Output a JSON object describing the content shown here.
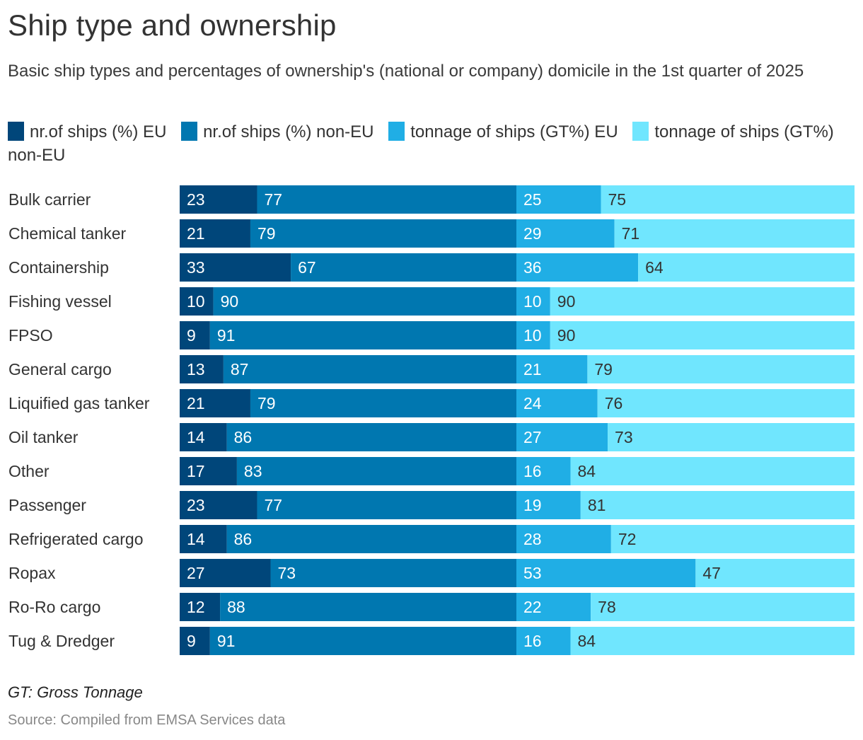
{
  "colors": {
    "ships_eu": "#00467a",
    "ships_non_eu": "#0077b0",
    "tonnage_eu": "#20aee5",
    "tonnage_non_eu": "#70e6fe",
    "label_light": "#ffffff",
    "label_dark": "#333333",
    "category_text": "#333333"
  },
  "footer": {
    "note": "GT: Gross Tonnage",
    "source": "Source: Compiled from EMSA Services data"
  },
  "chart_data": {
    "type": "bar",
    "orientation": "horizontal",
    "stacking": "percent, two independent 100% blocks per row (ships | tonnage)",
    "title": "Ship type and ownership",
    "subtitle": "Basic ship types and percentages of ownership's (national or company) domicile in the 1st quarter of 2025",
    "xlabel": "",
    "ylabel": "",
    "grid": false,
    "legend_position": "top",
    "categories": [
      "Bulk carrier",
      "Chemical tanker",
      "Containership",
      "Fishing vessel",
      "FPSO",
      "General cargo",
      "Liquified gas tanker",
      "Oil tanker",
      "Other",
      "Passenger",
      "Refrigerated cargo",
      "Ropax",
      "Ro-Ro cargo",
      "Tug & Dredger"
    ],
    "series": [
      {
        "name": "nr.of ships (%) EU",
        "group": "ships",
        "color_key": "ships_eu",
        "values": [
          23,
          21,
          33,
          10,
          9,
          13,
          21,
          14,
          17,
          23,
          14,
          27,
          12,
          9
        ]
      },
      {
        "name": "nr.of ships (%) non-EU",
        "group": "ships",
        "color_key": "ships_non_eu",
        "values": [
          77,
          79,
          67,
          90,
          91,
          87,
          79,
          86,
          83,
          77,
          86,
          73,
          88,
          91
        ]
      },
      {
        "name": "tonnage of ships (GT%) EU",
        "group": "tonnage",
        "color_key": "tonnage_eu",
        "values": [
          25,
          29,
          36,
          10,
          10,
          21,
          24,
          27,
          16,
          19,
          28,
          53,
          22,
          16
        ]
      },
      {
        "name": "tonnage of ships (GT%) non-EU",
        "group": "tonnage",
        "color_key": "tonnage_non_eu",
        "values": [
          75,
          71,
          64,
          90,
          90,
          79,
          76,
          73,
          84,
          81,
          72,
          47,
          78,
          84
        ]
      }
    ],
    "xlim": [
      0,
      100
    ]
  }
}
